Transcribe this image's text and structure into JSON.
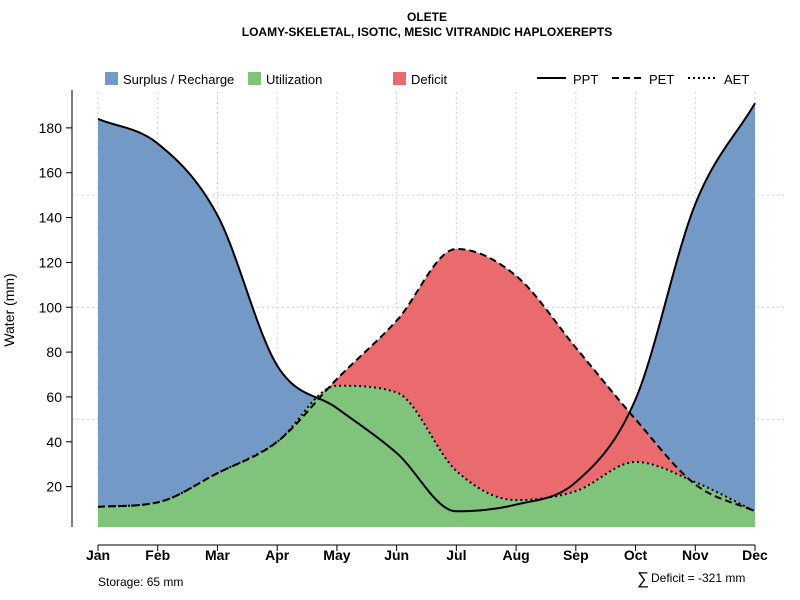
{
  "chart_data": {
    "type": "area",
    "title": "OLETE",
    "subtitle": "LOAMY-SKELETAL, ISOTIC, MESIC VITRANDIC HAPLOXEREPTS",
    "ylabel": "Water (mm)",
    "xlabel": "",
    "ylim": [
      2,
      196
    ],
    "yticks": [
      20,
      40,
      60,
      80,
      100,
      120,
      140,
      160,
      180
    ],
    "grid": true,
    "categories": [
      "Jan",
      "Feb",
      "Mar",
      "Apr",
      "May",
      "Jun",
      "Jul",
      "Aug",
      "Sep",
      "Oct",
      "Nov",
      "Dec"
    ],
    "series": [
      {
        "name": "PPT",
        "style": "solid",
        "values": [
          184,
          173,
          141,
          74,
          55,
          35,
          9,
          12,
          22,
          59,
          146,
          191
        ]
      },
      {
        "name": "PET",
        "style": "dashed",
        "values": [
          11,
          13,
          26,
          40,
          68,
          94,
          126,
          114,
          82,
          50,
          21,
          9
        ]
      },
      {
        "name": "AET",
        "style": "dotted",
        "values": [
          11,
          13,
          26,
          40,
          65,
          62,
          27,
          14,
          18,
          31,
          22,
          9
        ]
      }
    ],
    "areas": [
      {
        "name": "Surplus / Recharge",
        "color": "#7399c6"
      },
      {
        "name": "Utilization",
        "color": "#7fc47a"
      },
      {
        "name": "Deficit",
        "color": "#ea6b6e"
      }
    ],
    "legend_position": "top",
    "annotations": {
      "storage": "Storage: 65 mm",
      "deficit": "Deficit = -321 mm",
      "deficit_symbol": "∑"
    }
  },
  "colors": {
    "surplus": "#7399c6",
    "utilization": "#7fc47a",
    "deficit": "#ea6b6e",
    "line": "#000000",
    "grid": "#cfcfcf"
  }
}
